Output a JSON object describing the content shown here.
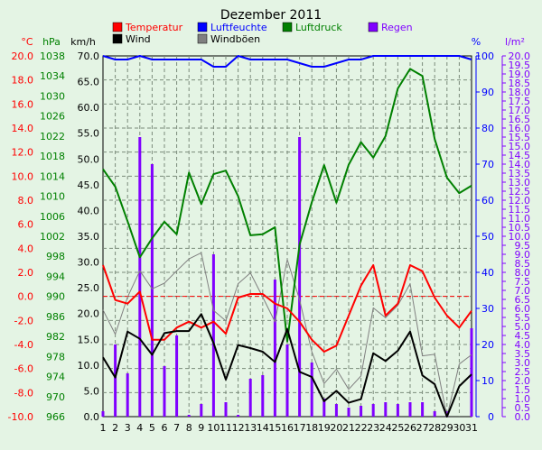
{
  "chart_data": {
    "type": "line",
    "title": "Dezember 2011",
    "x": [
      "1",
      "2",
      "3",
      "4",
      "5",
      "6",
      "7",
      "8",
      "9",
      "10",
      "11",
      "12",
      "13",
      "14",
      "15",
      "16",
      "17",
      "18",
      "19",
      "20",
      "21",
      "22",
      "23",
      "24",
      "25",
      "26",
      "27",
      "28",
      "29",
      "30",
      "31"
    ],
    "axes": {
      "temp": {
        "label": "°C",
        "min": -10,
        "max": 20,
        "step": 2,
        "color": "#ff0000"
      },
      "press": {
        "label": "hPa",
        "min": 966,
        "max": 1038,
        "step": 4,
        "color": "#008000"
      },
      "wind": {
        "label": "km/h",
        "min": 0,
        "max": 70,
        "step": 5,
        "color": "#000000"
      },
      "hum": {
        "label": "%",
        "min": 0,
        "max": 100,
        "step": 10,
        "color": "#0000ff"
      },
      "rain": {
        "label": "l/m²",
        "min": 0,
        "max": 20,
        "step": 0.5,
        "color": "#8000ff"
      }
    },
    "axis_ticks": {
      "temp": [
        "20.0",
        "18.0",
        "16.0",
        "14.0",
        "12.0",
        "10.0",
        "8.0",
        "6.0",
        "4.0",
        "2.0",
        "0.0",
        "-2.0",
        "-4.0",
        "-6.0",
        "-8.0",
        "-10.0"
      ],
      "press": [
        "1038",
        "1034",
        "1030",
        "1026",
        "1022",
        "1018",
        "1014",
        "1010",
        "1006",
        "1002",
        "998",
        "994",
        "990",
        "986",
        "982",
        "978",
        "974",
        "970",
        "966"
      ],
      "wind": [
        "70.0",
        "65.0",
        "60.0",
        "55.0",
        "50.0",
        "45.0",
        "40.0",
        "35.0",
        "30.0",
        "25.0",
        "20.0",
        "15.0",
        "10.0",
        "5.0",
        "0.0"
      ],
      "hum": [
        "100",
        "90",
        "80",
        "70",
        "60",
        "50",
        "40",
        "30",
        "20",
        "10",
        "0"
      ],
      "rain": [
        "20.0",
        "19.5",
        "19.0",
        "18.5",
        "18.0",
        "17.5",
        "17.0",
        "16.5",
        "16.0",
        "15.5",
        "15.0",
        "14.5",
        "14.0",
        "13.5",
        "13.0",
        "12.5",
        "12.0",
        "11.5",
        "11.0",
        "10.5",
        "10.0",
        "9.5",
        "9.0",
        "8.5",
        "8.0",
        "7.5",
        "7.0",
        "6.5",
        "6.0",
        "5.5",
        "5.0",
        "4.5",
        "4.0",
        "3.5",
        "3.0",
        "2.5",
        "2.0",
        "1.5",
        "1.0",
        "0.5",
        "0.0"
      ]
    },
    "legend": [
      {
        "name": "Temperatur",
        "color": "#ff0000",
        "text_color": "#ff0000"
      },
      {
        "name": "Luftfeuchte",
        "color": "#0000ff",
        "text_color": "#0000ff"
      },
      {
        "name": "Luftdruck",
        "color": "#008000",
        "text_color": "#008000"
      },
      {
        "name": "Regen",
        "color": "#8000ff",
        "text_color": "#8000ff"
      },
      {
        "name": "Wind",
        "color": "#000000",
        "text_color": "#000000"
      },
      {
        "name": "Windböen",
        "color": "#808080",
        "text_color": "#000000"
      }
    ],
    "series": [
      {
        "key": "temperature",
        "axis": "temp",
        "color": "#ff0000",
        "values": [
          2.6,
          -0.3,
          -0.6,
          0.4,
          -3.6,
          -3.6,
          -2.6,
          -2.1,
          -2.6,
          -2.1,
          -3.1,
          -0.1,
          0.2,
          0.2,
          -0.6,
          -1.0,
          -2.1,
          -3.6,
          -4.6,
          -4.1,
          -1.6,
          0.9,
          2.6,
          -1.6,
          -0.6,
          2.6,
          2.1,
          -0.1,
          -1.6,
          -2.6,
          -1.2
        ]
      },
      {
        "key": "humidity",
        "axis": "hum",
        "color": "#0000ff",
        "values": [
          100,
          99,
          99,
          100,
          99,
          99,
          99,
          99,
          99,
          97,
          97,
          100,
          99,
          99,
          99,
          99,
          98,
          97,
          97,
          98,
          99,
          99,
          100,
          100,
          100,
          100,
          100,
          100,
          100,
          100,
          99
        ]
      },
      {
        "key": "pressure",
        "axis": "press",
        "color": "#008000",
        "values": [
          1015.4,
          1011.9,
          1005.0,
          997.8,
          1001.6,
          1004.9,
          1002.4,
          1014.7,
          1008.4,
          1014.4,
          1015.1,
          1010.0,
          1002.2,
          1002.4,
          1003.8,
          981.0,
          1000.3,
          1008.8,
          1016.2,
          1008.7,
          1016.3,
          1020.8,
          1017.7,
          1022.0,
          1031.5,
          1035.4,
          1034.0,
          1021.4,
          1013.7,
          1010.6,
          1012.1
        ]
      },
      {
        "key": "rain",
        "axis": "rain",
        "type": "bar",
        "color": "#8000ff",
        "values": [
          0.3,
          4.0,
          2.4,
          15.5,
          14.0,
          2.8,
          4.5,
          0.1,
          0.7,
          9.0,
          0.8,
          0.1,
          2.1,
          2.3,
          7.6,
          4.0,
          15.5,
          3.0,
          1.0,
          0.7,
          0.5,
          0.6,
          0.7,
          0.8,
          0.7,
          0.8,
          0.8,
          0.3,
          0.3,
          0.0,
          4.9
        ]
      },
      {
        "key": "wind",
        "axis": "wind",
        "color": "#000000",
        "values": [
          11.5,
          7.6,
          16.5,
          15.1,
          12.0,
          16.2,
          16.6,
          16.6,
          19.9,
          14.3,
          7.2,
          13.9,
          13.3,
          12.6,
          10.6,
          17.0,
          8.7,
          7.7,
          3.0,
          5.0,
          2.7,
          3.4,
          12.3,
          10.8,
          12.8,
          16.5,
          8.0,
          6.3,
          0.0,
          5.9,
          8.2
        ]
      },
      {
        "key": "gusts",
        "axis": "wind",
        "color": "#808080",
        "values": [
          20.7,
          16.0,
          23.2,
          28.3,
          24.8,
          25.9,
          28.3,
          30.6,
          31.8,
          20.6,
          18.6,
          25.8,
          27.9,
          23.2,
          18.4,
          30.5,
          22.7,
          12.6,
          6.4,
          9.2,
          5.3,
          7.9,
          21.1,
          19.2,
          21.6,
          25.8,
          11.8,
          12.1,
          0.0,
          10.2,
          12.0
        ]
      }
    ],
    "reference_line": {
      "axis": "temp",
      "value": 0,
      "color": "#ff0000",
      "style": "dashed"
    },
    "grid": true
  }
}
